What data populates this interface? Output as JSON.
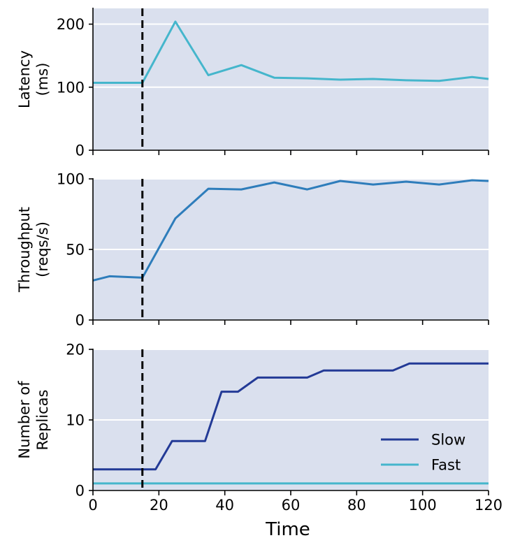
{
  "chart_data": [
    {
      "type": "line",
      "ylabel_lines": [
        "Latency",
        "(ms)"
      ],
      "xlim": [
        0,
        120
      ],
      "ylim": [
        0,
        225
      ],
      "yticks": [
        0,
        100,
        200
      ],
      "grid": "horizontal",
      "vline_x": 15,
      "colors": {
        "background": "#dae0ee",
        "line": "#45b6cc"
      },
      "series": [
        {
          "x": [
            0,
            5,
            15,
            25,
            35,
            45,
            55,
            65,
            75,
            85,
            95,
            105,
            115,
            120
          ],
          "values": [
            107,
            107,
            107,
            204,
            119,
            135,
            115,
            114,
            112,
            113,
            111,
            110,
            116,
            113
          ]
        }
      ]
    },
    {
      "type": "line",
      "ylabel_lines": [
        "Throughput",
        "(reqs/s)"
      ],
      "xlim": [
        0,
        120
      ],
      "ylim": [
        0,
        100
      ],
      "yticks": [
        0,
        50,
        100
      ],
      "grid": "horizontal",
      "vline_x": 15,
      "colors": {
        "background": "#dae0ee",
        "line": "#2e7dbb"
      },
      "series": [
        {
          "x": [
            0,
            5,
            15,
            25,
            35,
            45,
            55,
            65,
            75,
            85,
            95,
            105,
            115,
            120
          ],
          "values": [
            28,
            31,
            30,
            72,
            93,
            92.5,
            97.5,
            92.5,
            98.5,
            96,
            98,
            96,
            99,
            98.5
          ]
        }
      ]
    },
    {
      "type": "line",
      "ylabel_lines": [
        "Number of",
        "Replicas"
      ],
      "xlabel": "Time",
      "xlim": [
        0,
        120
      ],
      "ylim": [
        0,
        20
      ],
      "yticks": [
        0,
        10,
        20
      ],
      "xticks": [
        0,
        20,
        40,
        60,
        80,
        100,
        120
      ],
      "grid": "horizontal",
      "vline_x": 15,
      "legend": "bottom-right",
      "colors": {
        "background": "#dae0ee"
      },
      "series": [
        {
          "name": "Slow",
          "color": "#233a96",
          "x": [
            0,
            19,
            24,
            34,
            39,
            44,
            50,
            65,
            70,
            91,
            96,
            120
          ],
          "values": [
            3,
            3,
            7,
            7,
            14,
            14,
            16,
            16,
            17,
            17,
            18,
            18
          ]
        },
        {
          "name": "Fast",
          "color": "#45b6cc",
          "x": [
            0,
            120
          ],
          "values": [
            1,
            1
          ]
        }
      ]
    }
  ]
}
